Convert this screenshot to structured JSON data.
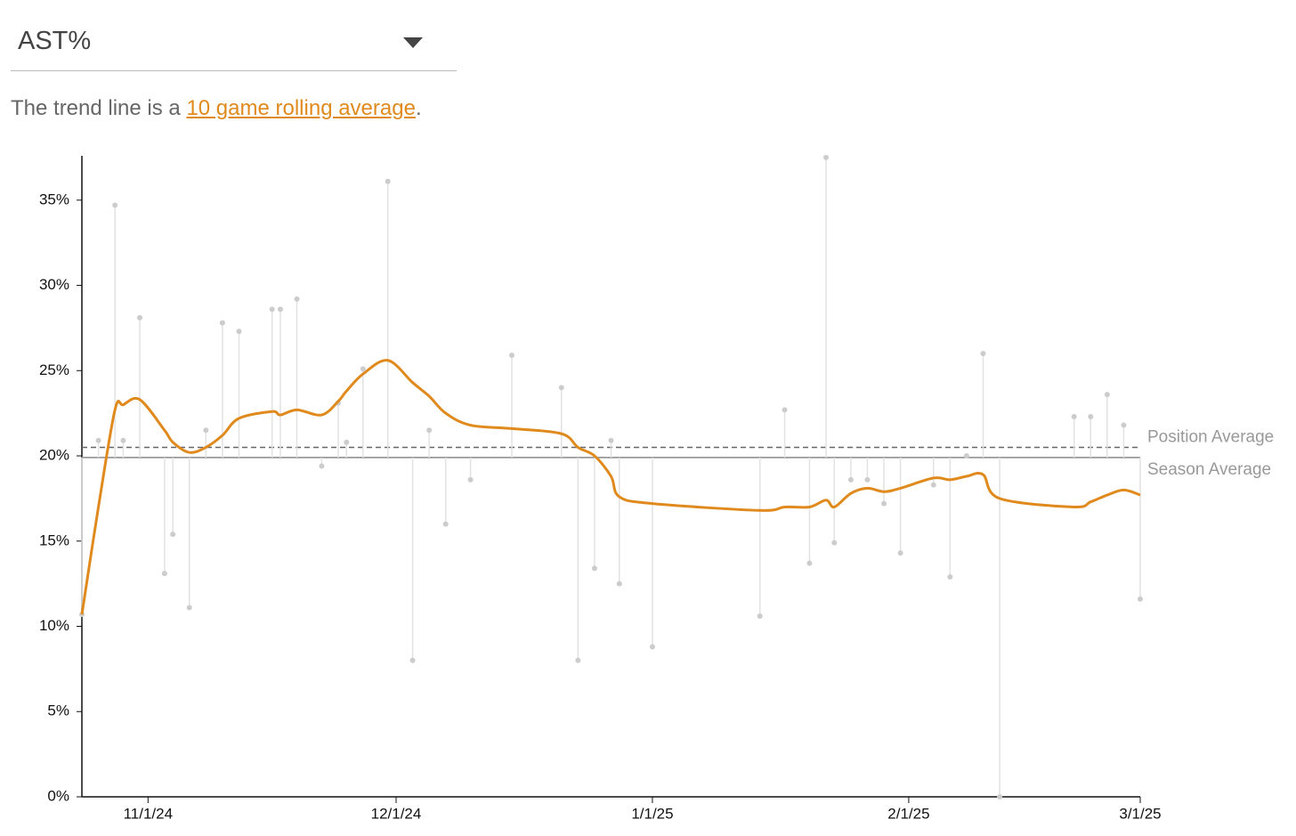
{
  "dropdown": {
    "selected": "AST%"
  },
  "description": {
    "before": "The trend line is a ",
    "link": "10 game rolling average",
    "after": "."
  },
  "chart_data": {
    "type": "line",
    "x": [
      "10/24/24",
      "10/26/24",
      "10/28/24",
      "10/29/24",
      "10/31/24",
      "11/3/24",
      "11/4/24",
      "11/6/24",
      "11/8/24",
      "11/10/24",
      "11/12/24",
      "11/16/24",
      "11/17/24",
      "11/19/24",
      "11/22/24",
      "11/24/24",
      "11/25/24",
      "11/27/24",
      "11/30/24",
      "12/3/24",
      "12/5/24",
      "12/7/24",
      "12/10/24",
      "12/15/24",
      "12/21/24",
      "12/23/24",
      "12/25/24",
      "12/27/24",
      "12/28/24",
      "1/1/25",
      "1/14/25",
      "1/17/25",
      "1/20/25",
      "1/22/25",
      "1/23/25",
      "1/25/25",
      "1/27/25",
      "1/29/25",
      "1/31/25",
      "2/4/25",
      "2/6/25",
      "2/8/25",
      "2/10/25",
      "2/12/25",
      "2/21/25",
      "2/23/25",
      "2/25/25",
      "2/27/25",
      "3/1/25"
    ],
    "values": [
      10.7,
      20.9,
      34.7,
      20.9,
      28.1,
      13.1,
      15.4,
      11.1,
      21.5,
      27.8,
      27.3,
      28.6,
      28.6,
      29.2,
      19.4,
      23.1,
      20.8,
      25.1,
      36.1,
      8.0,
      21.5,
      16.0,
      18.6,
      25.9,
      24.0,
      8.0,
      13.4,
      20.9,
      12.5,
      8.8,
      10.6,
      22.7,
      13.7,
      37.5,
      14.9,
      18.6,
      18.6,
      17.2,
      14.3,
      18.3,
      12.9,
      20.0,
      26.0,
      0,
      22.3,
      22.3,
      23.6,
      21.8,
      11.6
    ],
    "point_color": "#cccccc",
    "trend": [
      10.7,
      17.0,
      22.7,
      23.0,
      23.3,
      21.5,
      20.8,
      20.2,
      20.5,
      21.2,
      22.2,
      22.6,
      22.4,
      22.7,
      22.4,
      23.2,
      23.8,
      24.8,
      25.6,
      24.3,
      23.5,
      22.5,
      21.8,
      21.6,
      21.3,
      20.5,
      20.0,
      18.8,
      17.6,
      17.2,
      16.8,
      17.0,
      17.0,
      17.4,
      17.0,
      17.8,
      18.1,
      17.9,
      18.1,
      18.7,
      18.6,
      18.8,
      18.9,
      17.5,
      17.0,
      17.3,
      17.7,
      18.0,
      17.7
    ],
    "trend_color": "#e08a1e",
    "reference_lines": [
      {
        "label": "Position Average",
        "value": 20.5,
        "dashed": true,
        "color": "#666666"
      },
      {
        "label": "Season Average",
        "value": 19.9,
        "dashed": false,
        "color": "#888888"
      }
    ],
    "xlim": [
      "10/24/24",
      "3/1/25"
    ],
    "xticks": [
      "11/1/24",
      "12/1/24",
      "1/1/25",
      "2/1/25",
      "3/1/25"
    ],
    "ylim": [
      0,
      37.6
    ],
    "yticks": [
      {
        "value": 0,
        "label": "0%"
      },
      {
        "value": 5,
        "label": "5%"
      },
      {
        "value": 10,
        "label": "10%"
      },
      {
        "value": 15,
        "label": "15%"
      },
      {
        "value": 20,
        "label": "20%"
      },
      {
        "value": 25,
        "label": "25%"
      },
      {
        "value": 30,
        "label": "30%"
      },
      {
        "value": 35,
        "label": "35%"
      }
    ]
  }
}
